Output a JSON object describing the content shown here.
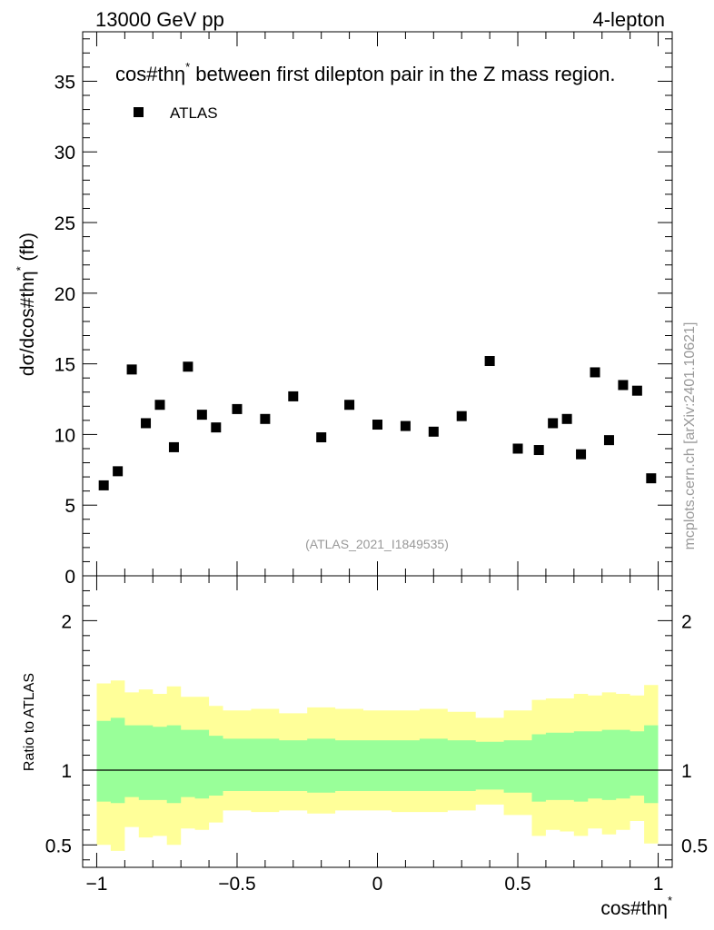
{
  "header": {
    "energy_label": "13000 GeV pp",
    "process_label": "4-lepton"
  },
  "side_label": "mcplots.cern.ch [arXiv:2401.10621]",
  "chart_data": [
    {
      "type": "scatter",
      "title": "cos#thη",
      "title_sup": "*",
      "title_rest": " between first dilepton pair in the Z mass region.",
      "ylabel": "dσ/dcos#thη",
      "ylabel_sup": "*",
      "ylabel_unit": " (fb)",
      "xlim": [
        -1.05,
        1.05
      ],
      "ylim": [
        0,
        38.5
      ],
      "yticks": [
        0,
        5,
        10,
        15,
        20,
        25,
        30,
        35
      ],
      "legend_position": "top-left",
      "watermark": "(ATLAS_2021_I1849535)",
      "series": [
        {
          "name": "ATLAS",
          "color": "#000000",
          "x": [
            -0.975,
            -0.925,
            -0.875,
            -0.825,
            -0.775,
            -0.725,
            -0.675,
            -0.625,
            -0.575,
            -0.5,
            -0.4,
            -0.3,
            -0.2,
            -0.1,
            0.0,
            0.1,
            0.2,
            0.3,
            0.4,
            0.5,
            0.575,
            0.625,
            0.675,
            0.725,
            0.775,
            0.825,
            0.875,
            0.925,
            0.975
          ],
          "y": [
            6.4,
            7.4,
            14.6,
            10.8,
            12.1,
            9.1,
            14.8,
            11.4,
            10.5,
            11.8,
            11.1,
            12.7,
            9.8,
            12.1,
            10.7,
            10.6,
            10.2,
            11.3,
            15.2,
            9.0,
            8.9,
            10.8,
            11.1,
            8.6,
            14.4,
            9.6,
            13.5,
            13.1,
            6.9
          ]
        }
      ]
    },
    {
      "type": "area",
      "ylabel": "Ratio to ATLAS",
      "xlabel": "cos#thη",
      "xlabel_sup": "*",
      "xlim": [
        -1.05,
        1.05
      ],
      "ylim": [
        0.35,
        2.3
      ],
      "yticks": [
        0.5,
        1,
        2
      ],
      "yticklabels": [
        "0.5",
        "1",
        "2"
      ],
      "xticks": [
        -1,
        -0.5,
        0,
        0.5,
        1
      ],
      "xticklabels": [
        "−1",
        "−0.5",
        "0",
        "0.5",
        "1"
      ],
      "reference_line": 1,
      "band_colors": {
        "outer": "#ffff99",
        "inner": "#99ff99"
      },
      "bins": [
        -1.0,
        -0.95,
        -0.9,
        -0.85,
        -0.8,
        -0.75,
        -0.7,
        -0.65,
        -0.6,
        -0.55,
        -0.45,
        -0.35,
        -0.25,
        -0.15,
        -0.05,
        0.05,
        0.15,
        0.25,
        0.35,
        0.45,
        0.55,
        0.6,
        0.65,
        0.7,
        0.75,
        0.8,
        0.85,
        0.9,
        0.95,
        1.0
      ],
      "outer_upper": [
        1.58,
        1.6,
        1.52,
        1.54,
        1.51,
        1.56,
        1.49,
        1.49,
        1.43,
        1.4,
        1.41,
        1.38,
        1.42,
        1.41,
        1.4,
        1.4,
        1.41,
        1.39,
        1.35,
        1.4,
        1.47,
        1.48,
        1.48,
        1.51,
        1.5,
        1.52,
        1.51,
        1.5,
        1.57
      ],
      "outer_lower": [
        0.5,
        0.46,
        0.62,
        0.55,
        0.56,
        0.5,
        0.61,
        0.6,
        0.65,
        0.73,
        0.72,
        0.73,
        0.71,
        0.73,
        0.73,
        0.72,
        0.72,
        0.73,
        0.77,
        0.7,
        0.56,
        0.6,
        0.59,
        0.56,
        0.61,
        0.57,
        0.6,
        0.66,
        0.51
      ],
      "inner_upper": [
        1.33,
        1.35,
        1.3,
        1.3,
        1.29,
        1.3,
        1.27,
        1.27,
        1.23,
        1.21,
        1.21,
        1.2,
        1.21,
        1.2,
        1.2,
        1.2,
        1.21,
        1.2,
        1.19,
        1.2,
        1.24,
        1.25,
        1.25,
        1.26,
        1.26,
        1.27,
        1.27,
        1.26,
        1.3
      ],
      "inner_lower": [
        0.79,
        0.78,
        0.82,
        0.8,
        0.8,
        0.78,
        0.82,
        0.81,
        0.83,
        0.86,
        0.86,
        0.86,
        0.85,
        0.86,
        0.86,
        0.86,
        0.86,
        0.86,
        0.87,
        0.85,
        0.79,
        0.8,
        0.8,
        0.79,
        0.81,
        0.8,
        0.81,
        0.83,
        0.78
      ]
    }
  ]
}
